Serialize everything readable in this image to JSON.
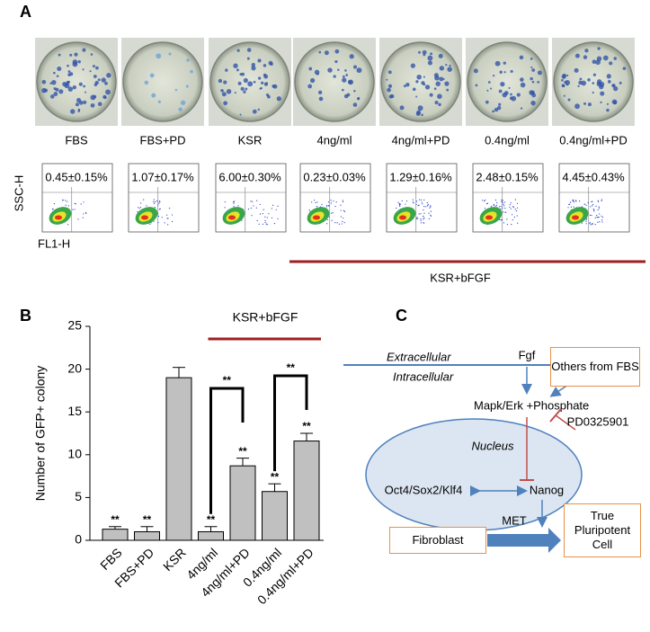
{
  "panel_labels": [
    "A",
    "B",
    "C"
  ],
  "panel_a": {
    "flow_percentages": [
      "0.45±0.15%",
      "1.07±0.17%",
      "6.00±0.30%",
      "0.23±0.03%",
      "1.29±0.16%",
      "2.48±0.15%",
      "4.45±0.43%"
    ],
    "y_axis_label": "SSC-H",
    "x_axis_label": "FL1-H",
    "group_label": "KSR+bFGF"
  },
  "chart_data": {
    "type": "bar",
    "annotation": "KSR+bFGF",
    "y_label": "Number of GFP+ colony",
    "categories": [
      "FBS",
      "FBS+PD",
      "KSR",
      "4ng/ml",
      "4ng/ml+PD",
      "0.4ng/ml",
      "0.4ng/ml+PD"
    ],
    "values": [
      1.3,
      1.0,
      19.0,
      1.0,
      8.7,
      5.7,
      11.6
    ],
    "errors": [
      0.3,
      0.6,
      1.2,
      0.6,
      0.9,
      0.9,
      0.9
    ],
    "significance": [
      "**",
      "**",
      null,
      "**",
      "**",
      "**",
      "**"
    ],
    "brackets": [
      {
        "from": "4ng/ml",
        "to": "4ng/ml+PD",
        "label": "**"
      },
      {
        "from": "0.4ng/ml",
        "to": "0.4ng/ml+PD",
        "label": "**"
      }
    ],
    "color": "#c0c0c0",
    "ylim": [
      0,
      25
    ],
    "yticks": [
      0,
      5,
      10,
      15,
      20,
      25
    ]
  },
  "panel_c": {
    "extracellular": "Extracellular",
    "intracellular": "Intracellular",
    "fgf": "Fgf",
    "others": "Others from FBS",
    "mapk": "Mapk/Erk +Phosphate",
    "inhibitor": "PD0325901",
    "nucleus": "Nucleus",
    "oct4": "Oct4/Sox2/Klf4",
    "nanog": "Nanog",
    "fibroblast": "Fibroblast",
    "met": "MET",
    "result": "True Pluripotent Cell"
  }
}
